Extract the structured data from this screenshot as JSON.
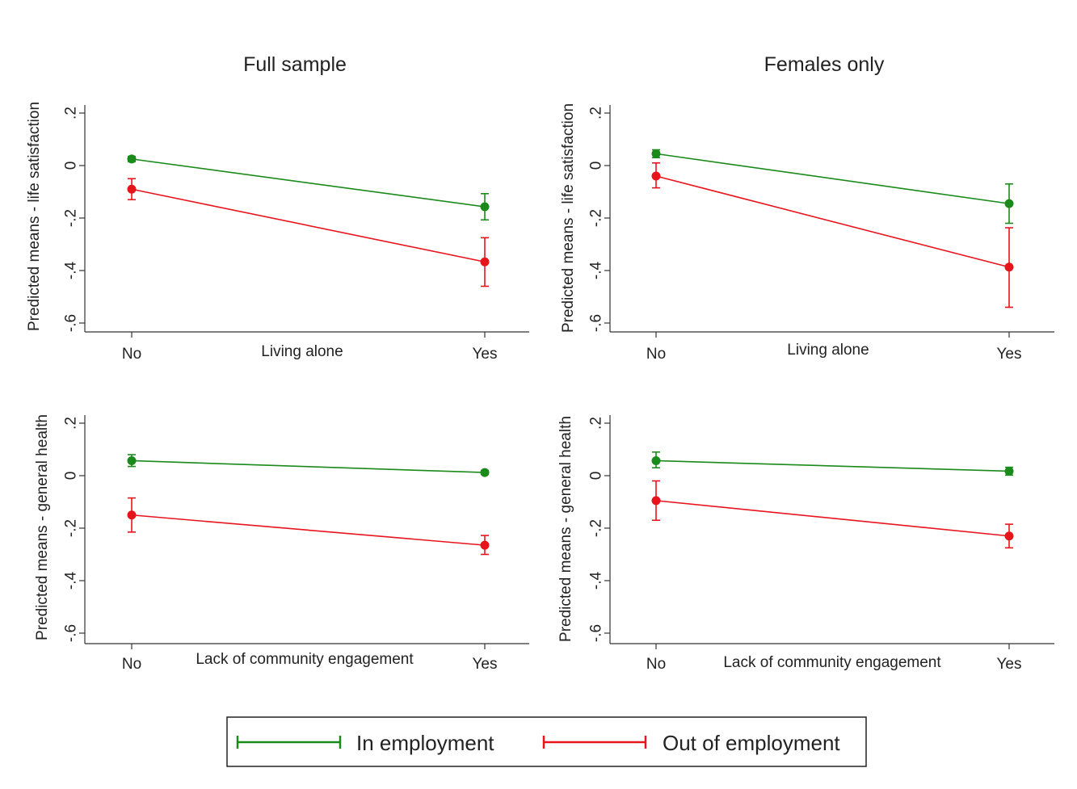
{
  "chart_data": [
    {
      "type": "line",
      "title": "Full sample",
      "xlabel": "Living alone",
      "ylabel": "Predicted means - life satisfaction",
      "categories": [
        "No",
        "Yes"
      ],
      "yticks": [
        ".2",
        "0",
        "-.2",
        "-.4",
        "-.6"
      ],
      "ylim": [
        -0.6,
        0.2
      ],
      "series": [
        {
          "name": "In employment",
          "values": [
            0.025,
            -0.157
          ],
          "ci_low": [
            0.015,
            -0.207
          ],
          "ci_high": [
            0.035,
            -0.107
          ]
        },
        {
          "name": "Out of employment",
          "values": [
            -0.09,
            -0.367
          ],
          "ci_low": [
            -0.13,
            -0.46
          ],
          "ci_high": [
            -0.05,
            -0.275
          ]
        }
      ]
    },
    {
      "type": "line",
      "title": "Females only",
      "xlabel": "Living alone",
      "ylabel": "Predicted means - life satisfaction",
      "categories": [
        "No",
        "Yes"
      ],
      "yticks": [
        ".2",
        "0",
        "-.2",
        "-.4",
        "-.6"
      ],
      "ylim": [
        -0.6,
        0.2
      ],
      "series": [
        {
          "name": "In employment",
          "values": [
            0.045,
            -0.145
          ],
          "ci_low": [
            0.03,
            -0.22
          ],
          "ci_high": [
            0.06,
            -0.07
          ]
        },
        {
          "name": "Out of employment",
          "values": [
            -0.04,
            -0.387
          ],
          "ci_low": [
            -0.085,
            -0.54
          ],
          "ci_high": [
            0.01,
            -0.237
          ]
        }
      ]
    },
    {
      "type": "line",
      "title": "",
      "xlabel": "Lack of community engagement",
      "ylabel": "Predicted means - general health",
      "categories": [
        "No",
        "Yes"
      ],
      "yticks": [
        ".2",
        "0",
        "-.2",
        "-.4",
        "-.6"
      ],
      "ylim": [
        -0.6,
        0.2
      ],
      "series": [
        {
          "name": "In employment",
          "values": [
            0.057,
            0.012
          ],
          "ci_low": [
            0.035,
            0.005
          ],
          "ci_high": [
            0.08,
            0.02
          ]
        },
        {
          "name": "Out of employment",
          "values": [
            -0.15,
            -0.265
          ],
          "ci_low": [
            -0.215,
            -0.3
          ],
          "ci_high": [
            -0.085,
            -0.228
          ]
        }
      ]
    },
    {
      "type": "line",
      "title": "",
      "xlabel": "Lack of community engagement",
      "ylabel": "Predicted means - general health",
      "categories": [
        "No",
        "Yes"
      ],
      "yticks": [
        ".2",
        "0",
        "-.2",
        "-.4",
        "-.6"
      ],
      "ylim": [
        -0.6,
        0.2
      ],
      "series": [
        {
          "name": "In employment",
          "values": [
            0.057,
            0.017
          ],
          "ci_low": [
            0.03,
            0.002
          ],
          "ci_high": [
            0.09,
            0.032
          ]
        },
        {
          "name": "Out of employment",
          "values": [
            -0.095,
            -0.23
          ],
          "ci_low": [
            -0.17,
            -0.275
          ],
          "ci_high": [
            -0.02,
            -0.185
          ]
        }
      ]
    }
  ],
  "legend": {
    "items": [
      {
        "label": "In employment",
        "color": "#1a8a1a"
      },
      {
        "label": "Out of employment",
        "color": "#e8141c"
      }
    ]
  },
  "colors": {
    "In employment": "#1a8a1a",
    "Out of employment": "#e8141c"
  }
}
